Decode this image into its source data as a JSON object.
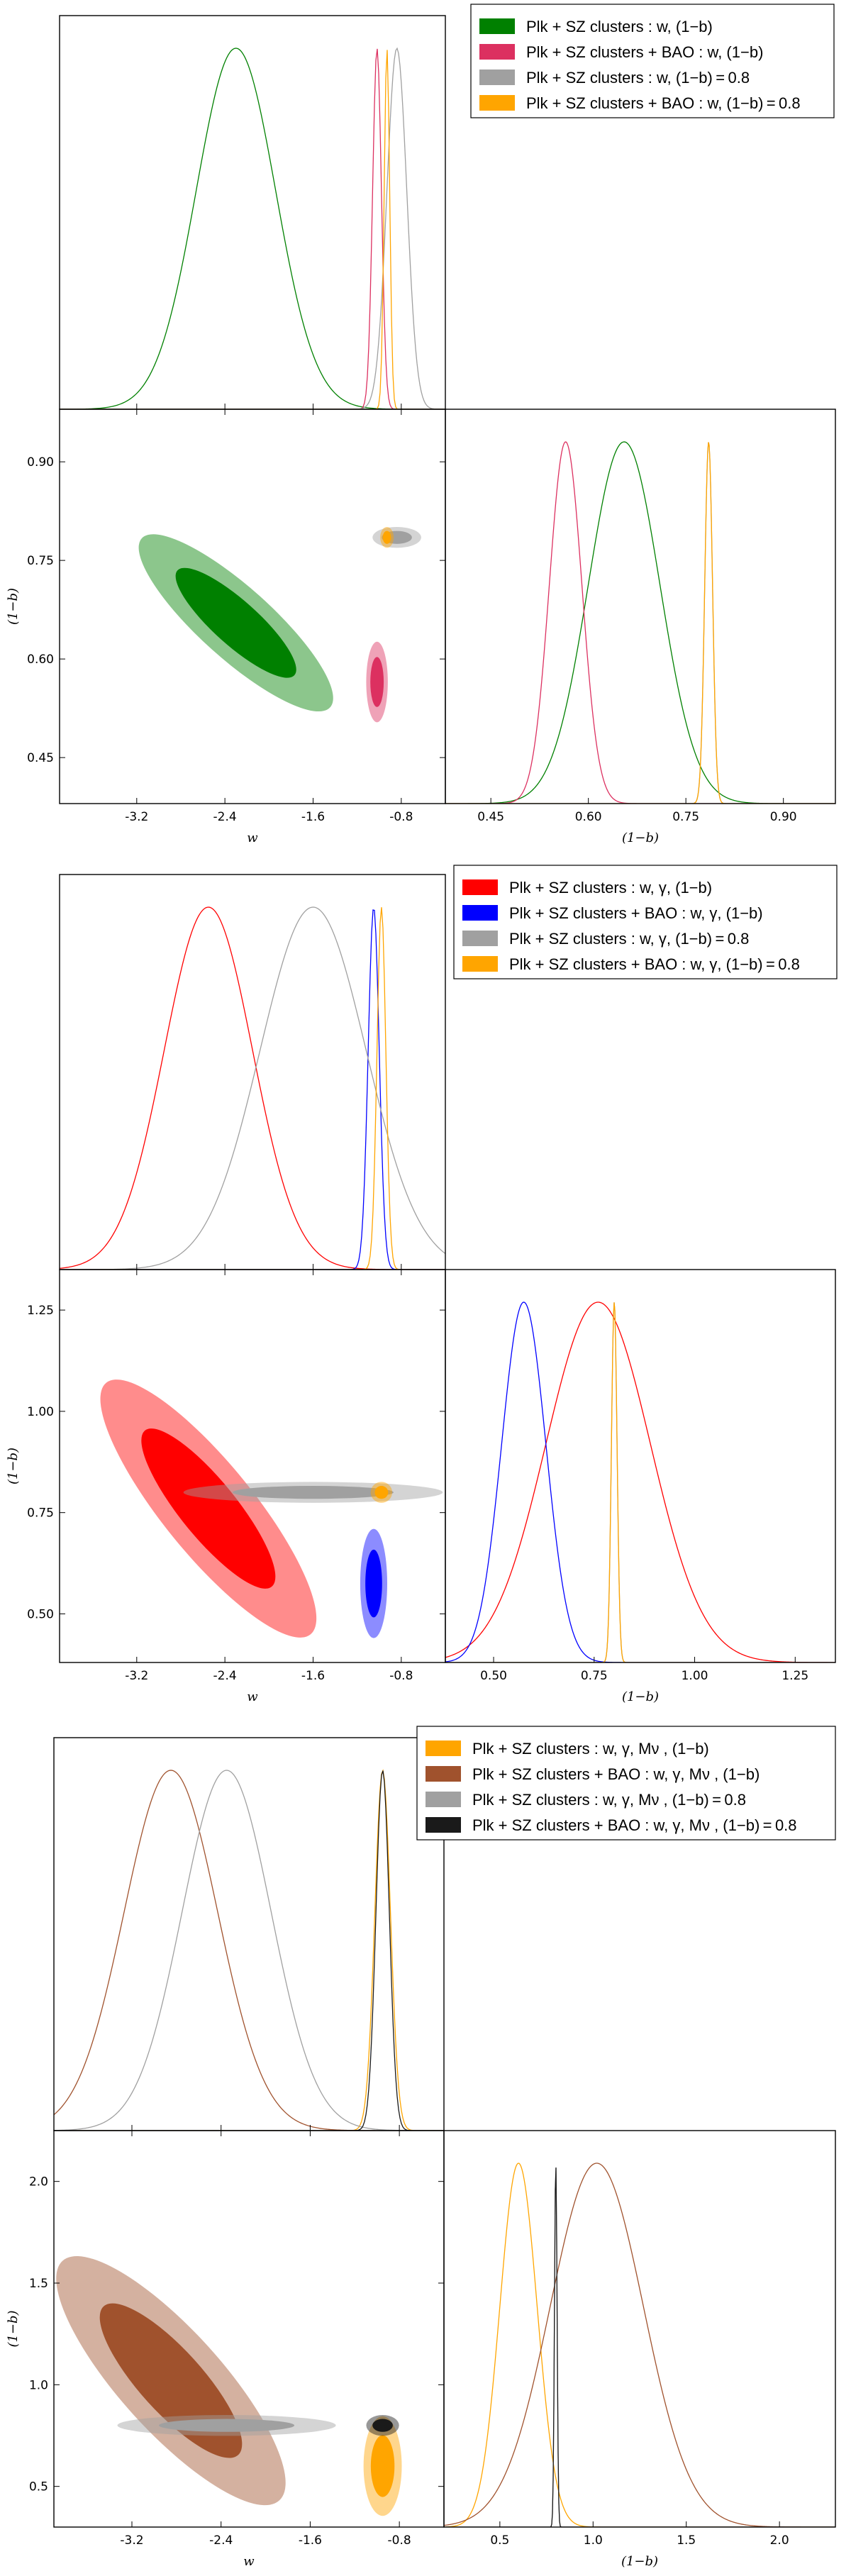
{
  "chart_data": [
    {
      "type": "triangle-corner",
      "xlabel": "w",
      "ylabel": "(1−b)",
      "xlabel_right": "(1−b)",
      "w_lim": [
        -3.9,
        -0.4
      ],
      "w_ticks": [
        "-3.2",
        "-2.4",
        "-1.6",
        "-0.8"
      ],
      "b_lim": [
        0.38,
        0.98
      ],
      "b_ticks": [
        "0.45",
        "0.60",
        "0.75",
        "0.90"
      ],
      "legend": [
        {
          "label": "Plk + SZ clusters : w, (1−b)",
          "color": "#008000"
        },
        {
          "label": "Plk + SZ clusters + BAO : w, (1−b)",
          "color": "#dc3060"
        },
        {
          "label": "Plk + SZ clusters : w, (1−b) = 0.8",
          "color": "#a0a0a0"
        },
        {
          "label": "Plk + SZ clusters + BAO : w, (1−b) = 0.8",
          "color": "#ffa500"
        }
      ],
      "series": [
        {
          "name": "green",
          "color": "#008000",
          "w_mean": -2.3,
          "w_sd": 0.36,
          "b_mean": 0.655,
          "b_sd": 0.055,
          "rho": -0.85
        },
        {
          "name": "crimson",
          "color": "#dc3060",
          "w_mean": -1.02,
          "w_sd": 0.04,
          "b_mean": 0.565,
          "b_sd": 0.025,
          "rho": 0
        },
        {
          "name": "gray",
          "color": "#a0a0a0",
          "w_mean": -0.84,
          "w_sd": 0.09,
          "b_mean": 0.785,
          "b_sd": 0.006,
          "rho": 0,
          "b_fixed": true
        },
        {
          "name": "orange",
          "color": "#ffa500",
          "w_mean": -0.93,
          "w_sd": 0.025,
          "b_mean": 0.785,
          "b_sd": 0.006,
          "rho": 0,
          "b_fixed": true
        }
      ]
    },
    {
      "type": "triangle-corner",
      "xlabel": "w",
      "ylabel": "(1−b)",
      "xlabel_right": "(1−b)",
      "w_lim": [
        -3.9,
        -0.4
      ],
      "w_ticks": [
        "-3.2",
        "-2.4",
        "-1.6",
        "-0.8"
      ],
      "b_lim": [
        0.38,
        1.35
      ],
      "b_ticks": [
        "0.50",
        "0.75",
        "1.00",
        "1.25"
      ],
      "legend": [
        {
          "label": "Plk + SZ clusters : w, γ, (1−b)",
          "color": "#ff0000"
        },
        {
          "label": "Plk + SZ clusters + BAO : w, γ, (1−b)",
          "color": "#0000ff"
        },
        {
          "label": "Plk + SZ clusters : w, γ, (1−b) = 0.8",
          "color": "#a0a0a0"
        },
        {
          "label": "Plk + SZ clusters + BAO : w, γ, (1−b) = 0.8",
          "color": "#ffa500"
        }
      ],
      "series": [
        {
          "name": "red",
          "color": "#ff0000",
          "w_mean": -2.55,
          "w_sd": 0.4,
          "b_mean": 0.76,
          "b_sd": 0.13,
          "rho": -0.85
        },
        {
          "name": "blue",
          "color": "#0000ff",
          "w_mean": -1.05,
          "w_sd": 0.05,
          "b_mean": 0.575,
          "b_sd": 0.055,
          "rho": 0
        },
        {
          "name": "gray",
          "color": "#a0a0a0",
          "w_mean": -1.6,
          "w_sd": 0.48,
          "b_mean": 0.8,
          "b_sd": 0.007,
          "rho": 0,
          "b_fixed": true
        },
        {
          "name": "orange",
          "color": "#ffa500",
          "w_mean": -0.98,
          "w_sd": 0.04,
          "b_mean": 0.8,
          "b_sd": 0.007,
          "rho": 0,
          "b_fixed": true
        }
      ]
    },
    {
      "type": "triangle-corner",
      "xlabel": "w",
      "ylabel": "(1−b)",
      "xlabel_right": "(1−b)",
      "w_lim": [
        -3.9,
        -0.4
      ],
      "w_ticks": [
        "-3.2",
        "-2.4",
        "-1.6",
        "-0.8"
      ],
      "b_lim": [
        0.3,
        2.25
      ],
      "b_ticks": [
        "0.5",
        "1.0",
        "1.5",
        "2.0"
      ],
      "b_lim_right": [
        0.2,
        2.3
      ],
      "b_ticks_right": [
        "0.5",
        "1.0",
        "1.5",
        "2.0"
      ],
      "legend": [
        {
          "label": "Plk + SZ clusters : w, γ, Mν , (1−b)",
          "color": "#ffa500"
        },
        {
          "label": "Plk + SZ clusters + BAO : w, γ, Mν , (1−b)",
          "color": "#a0522d"
        },
        {
          "label": "Plk + SZ clusters : w, γ, Mν , (1−b) = 0.8",
          "color": "#a0a0a0"
        },
        {
          "label": "Plk + SZ clusters + BAO : w, γ, Mν , (1−b) = 0.8",
          "color": "#1a1a1a"
        }
      ],
      "series": [
        {
          "name": "orange",
          "color": "#ffa500",
          "w_mean": -0.95,
          "w_sd": 0.07,
          "b_mean": 0.6,
          "b_sd": 0.1,
          "rho": 0
        },
        {
          "name": "brown",
          "color": "#a0522d",
          "w_mean": -2.85,
          "w_sd": 0.42,
          "b_mean": 1.02,
          "b_sd": 0.25,
          "rho": -0.82
        },
        {
          "name": "gray",
          "color": "#a0a0a0",
          "w_mean": -2.35,
          "w_sd": 0.4,
          "b_mean": 0.8,
          "b_sd": 0.007,
          "rho": 0,
          "b_fixed": true
        },
        {
          "name": "black",
          "color": "#1a1a1a",
          "w_mean": -0.95,
          "w_sd": 0.06,
          "b_mean": 0.8,
          "b_sd": 0.007,
          "rho": 0,
          "b_fixed": true
        }
      ]
    }
  ]
}
